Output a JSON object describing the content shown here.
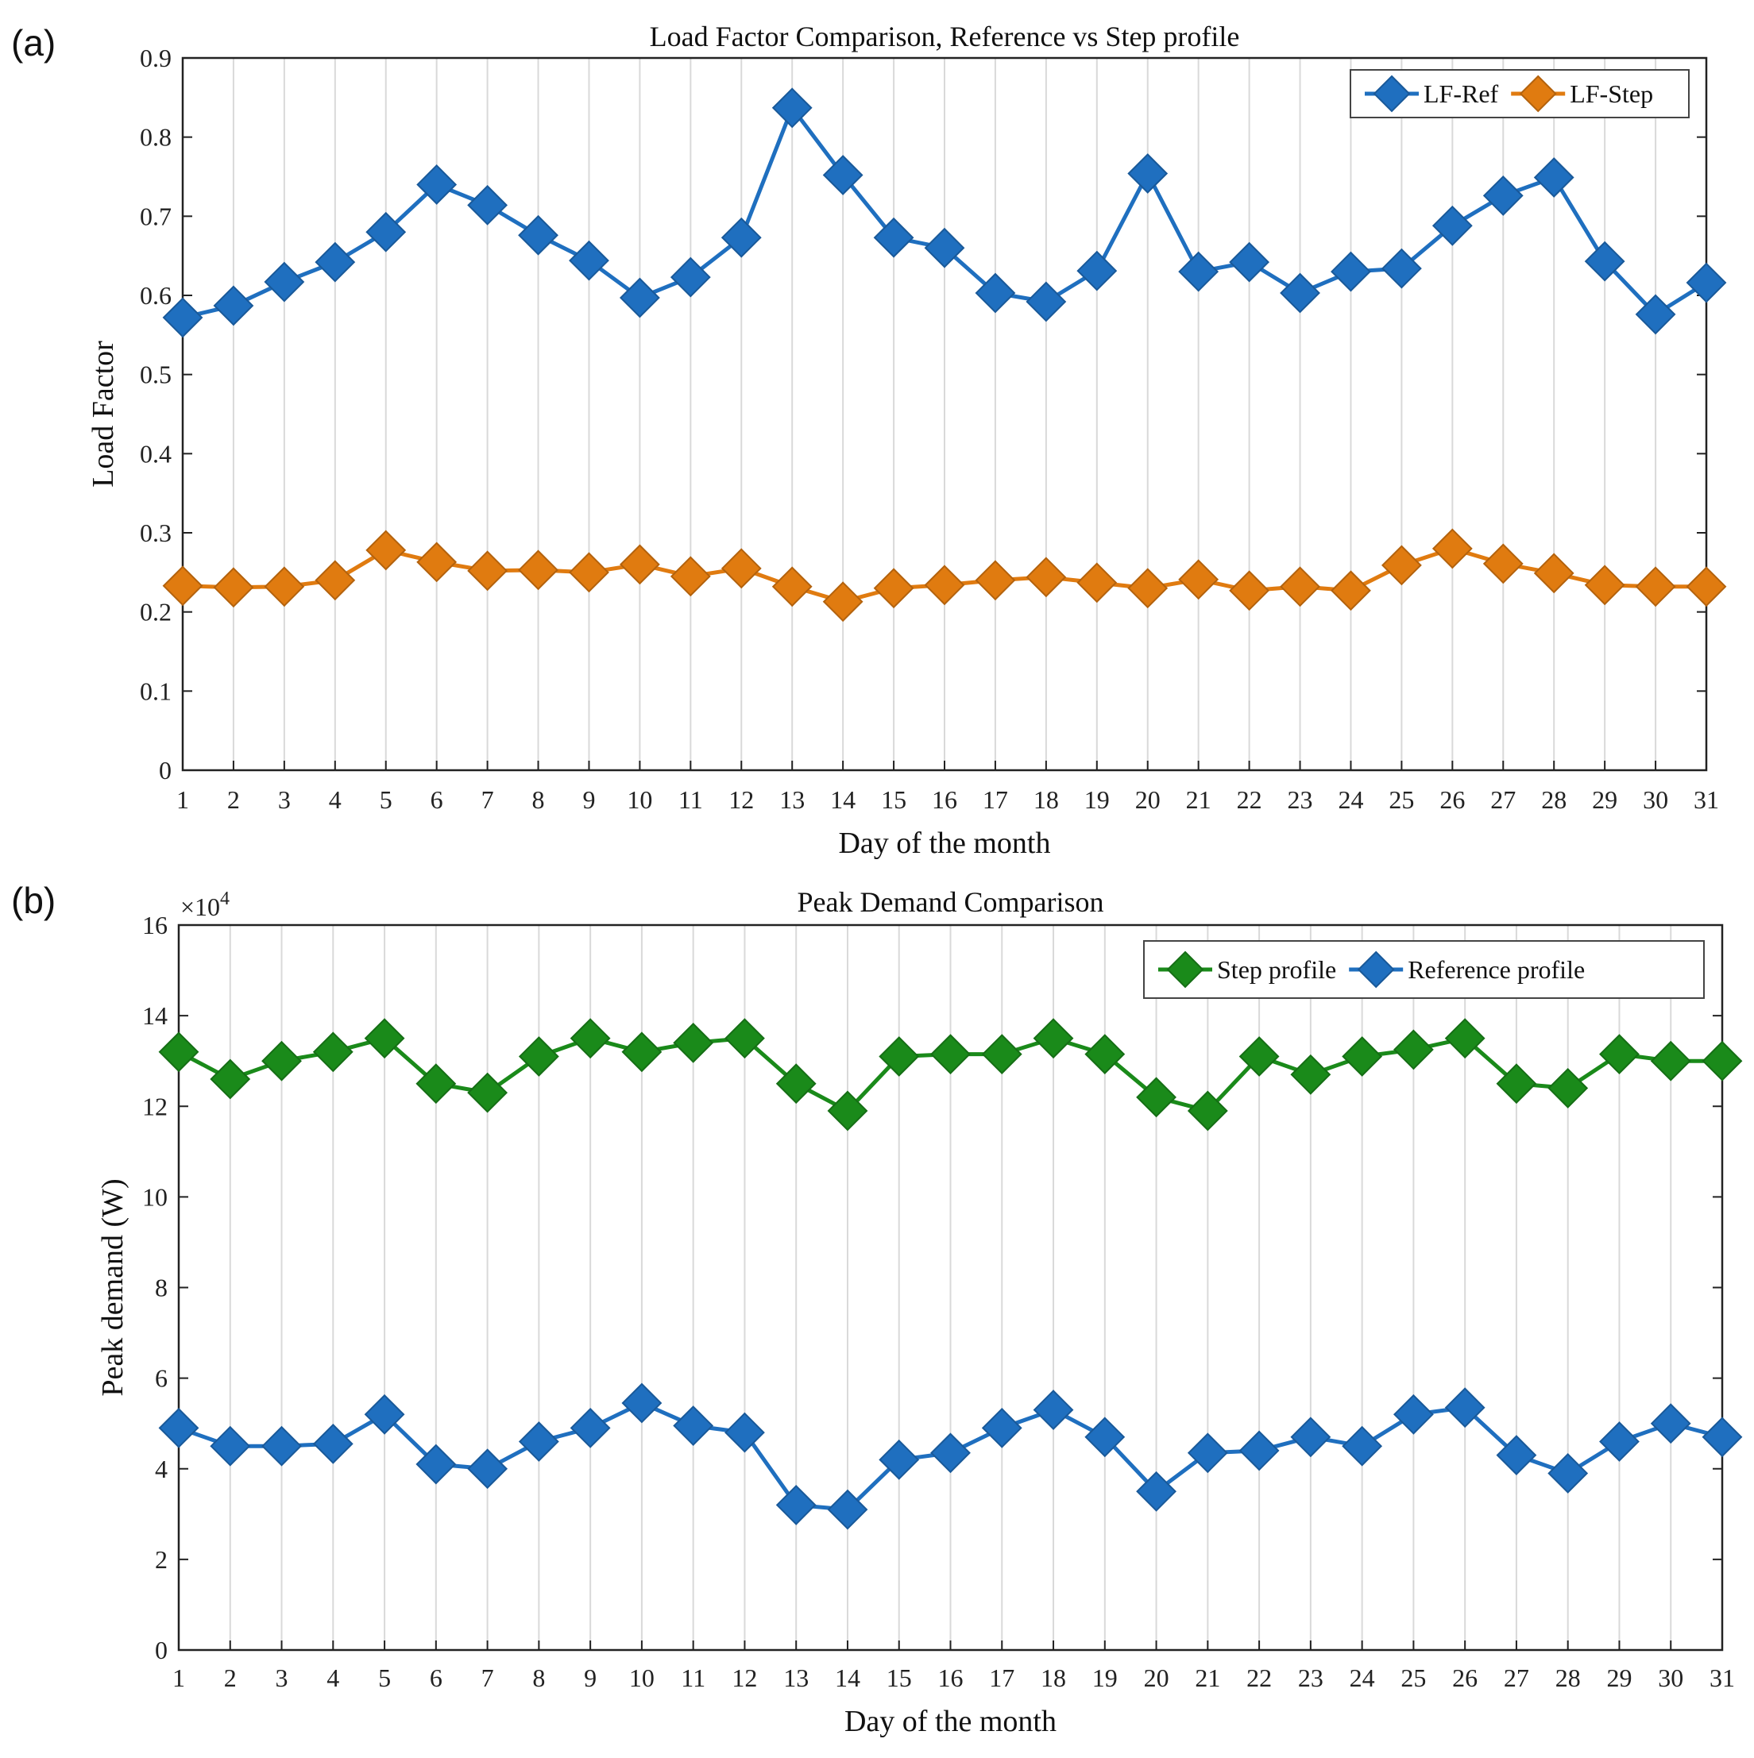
{
  "chart_data": [
    {
      "type": "line",
      "panel_label": "(a)",
      "title": "Load Factor Comparison, Reference vs Step profile",
      "xlabel": "Day of the month",
      "ylabel": "Load Factor",
      "x": [
        1,
        2,
        3,
        4,
        5,
        6,
        7,
        8,
        9,
        10,
        11,
        12,
        13,
        14,
        15,
        16,
        17,
        18,
        19,
        20,
        21,
        22,
        23,
        24,
        25,
        26,
        27,
        28,
        29,
        30,
        31
      ],
      "xlim": [
        1,
        31
      ],
      "ylim": [
        0,
        0.9
      ],
      "yticks": [
        0,
        0.1,
        0.2,
        0.3,
        0.4,
        0.5,
        0.6,
        0.7,
        0.8,
        0.9
      ],
      "ytick_labels": [
        "0",
        "0.1",
        "0.2",
        "0.3",
        "0.4",
        "0.5",
        "0.6",
        "0.7",
        "0.8",
        "0.9"
      ],
      "y_multiplier": "",
      "grid": "vertical",
      "legend_position": "top-right",
      "series": [
        {
          "name": "LF-Ref",
          "color": "#1f6fbf",
          "marker": "diamond",
          "values": [
            0.572,
            0.587,
            0.617,
            0.642,
            0.68,
            0.74,
            0.714,
            0.676,
            0.644,
            0.597,
            0.623,
            0.673,
            0.837,
            0.752,
            0.673,
            0.66,
            0.603,
            0.592,
            0.631,
            0.754,
            0.63,
            0.642,
            0.603,
            0.63,
            0.634,
            0.688,
            0.726,
            0.749,
            0.643,
            0.576,
            0.616
          ]
        },
        {
          "name": "LF-Step",
          "color": "#e07b10",
          "marker": "diamond",
          "values": [
            0.233,
            0.231,
            0.232,
            0.24,
            0.278,
            0.263,
            0.252,
            0.253,
            0.25,
            0.26,
            0.245,
            0.255,
            0.232,
            0.213,
            0.23,
            0.234,
            0.24,
            0.244,
            0.237,
            0.23,
            0.241,
            0.227,
            0.232,
            0.227,
            0.259,
            0.28,
            0.261,
            0.249,
            0.234,
            0.232,
            0.232
          ]
        }
      ]
    },
    {
      "type": "line",
      "panel_label": "(b)",
      "title": "Peak Demand Comparison",
      "xlabel": "Day of the month",
      "ylabel": "Peak demand (W)",
      "x": [
        1,
        2,
        3,
        4,
        5,
        6,
        7,
        8,
        9,
        10,
        11,
        12,
        13,
        14,
        15,
        16,
        17,
        18,
        19,
        20,
        21,
        22,
        23,
        24,
        25,
        26,
        27,
        28,
        29,
        30,
        31
      ],
      "xlim": [
        1,
        31
      ],
      "ylim": [
        0,
        16
      ],
      "yticks": [
        0,
        2,
        4,
        6,
        8,
        10,
        12,
        14,
        16
      ],
      "ytick_labels": [
        "0",
        "2",
        "4",
        "6",
        "8",
        "10",
        "12",
        "14",
        "16"
      ],
      "y_multiplier": "×10",
      "y_multiplier_exp": "4",
      "grid": "vertical",
      "legend_position": "top-right",
      "series": [
        {
          "name": "Step profile",
          "color": "#1a8a1a",
          "marker": "diamond",
          "values": [
            13.2,
            12.6,
            13.0,
            13.2,
            13.5,
            12.5,
            12.3,
            13.1,
            13.5,
            13.2,
            13.4,
            13.5,
            12.5,
            11.9,
            13.1,
            13.15,
            13.15,
            13.5,
            13.15,
            12.2,
            11.9,
            13.1,
            12.7,
            13.1,
            13.25,
            13.5,
            12.5,
            12.4,
            13.15,
            13.0,
            13.0
          ]
        },
        {
          "name": "Reference profile",
          "color": "#1f6fbf",
          "marker": "diamond",
          "values": [
            4.9,
            4.5,
            4.5,
            4.55,
            5.2,
            4.1,
            4.0,
            4.6,
            4.9,
            5.45,
            4.95,
            4.8,
            3.2,
            3.1,
            4.2,
            4.35,
            4.9,
            5.3,
            4.7,
            3.5,
            4.35,
            4.4,
            4.7,
            4.5,
            5.2,
            5.35,
            4.3,
            3.9,
            4.6,
            5.0,
            4.7
          ]
        }
      ]
    }
  ]
}
